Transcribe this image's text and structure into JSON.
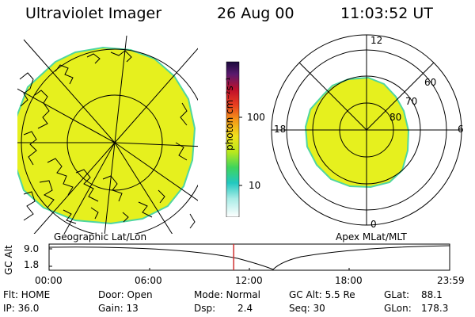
{
  "header": {
    "instrument": "Ultraviolet Imager",
    "date": "26 Aug 00",
    "time": "11:03:52 UT"
  },
  "geo_panel": {
    "label": "Geographic Lat/Lon"
  },
  "polar_panel": {
    "label": "Apex MLat/MLT",
    "mlt_labels": [
      "12",
      "18",
      "6",
      "0"
    ],
    "lat_labels": [
      "60",
      "70",
      "80"
    ]
  },
  "colorbar": {
    "ticks": [
      "100",
      "10"
    ],
    "unit_label": "photon cm⁻²s⁻¹"
  },
  "timeline": {
    "ylabel": "GC Alt",
    "y_top": "9.0",
    "y_bottom": "1.8",
    "x_ticks": [
      "00:00",
      "06:00",
      "12:00",
      "18:00",
      "23:59"
    ],
    "marker_time_hours": 11.06
  },
  "info": {
    "flt": "Flt: HOME",
    "ip": "IP: 36.0",
    "door": "Door: Open",
    "gain": "Gain: 13",
    "mode": "Mode: Normal",
    "dsp_label": "Dsp:",
    "dsp_value": "2.4",
    "gc_alt": "GC Alt: 5.5 Re",
    "seq": "Seq: 30",
    "glat_label": "GLat:",
    "glat_value": "88.1",
    "glon_label": "GLon:",
    "glon_value": "178.3"
  },
  "colors": {
    "aurora_fill": "#e6f01e",
    "aurora_edge": "#4fd6a0",
    "timeline_marker": "#d03030"
  }
}
